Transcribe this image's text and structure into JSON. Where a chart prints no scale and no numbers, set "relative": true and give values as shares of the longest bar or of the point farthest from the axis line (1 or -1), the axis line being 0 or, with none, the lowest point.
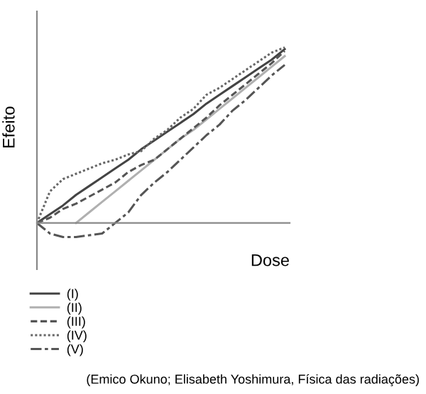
{
  "chart_data": {
    "type": "line",
    "relative": true,
    "xlabel": "Dose",
    "ylabel": "Efeito",
    "categories": [
      null,
      null,
      null,
      null,
      null,
      null,
      null,
      null,
      null,
      null,
      null,
      null,
      null,
      null,
      null,
      null,
      null,
      null,
      null,
      null
    ],
    "series": [
      {
        "name": "(I)",
        "color": "#444444",
        "line_style": "solid",
        "values": [
          0,
          0.05,
          0.1,
          0.16,
          0.21,
          0.26,
          0.31,
          0.36,
          0.42,
          0.47,
          0.52,
          0.57,
          0.62,
          0.68,
          0.73,
          0.78,
          0.83,
          0.88,
          0.93,
          0.99
        ]
      },
      {
        "name": "(II)",
        "color": "#b0b0b0",
        "line_style": "solid",
        "values": [
          null,
          null,
          null,
          0,
          0.06,
          0.12,
          0.18,
          0.24,
          0.3,
          0.36,
          0.42,
          0.48,
          0.53,
          0.59,
          0.65,
          0.71,
          0.77,
          0.83,
          0.89,
          0.95
        ]
      },
      {
        "name": "(III)",
        "color": "#555555",
        "line_style": "dashed",
        "values": [
          0,
          0.03,
          0.08,
          0.11,
          0.15,
          0.19,
          0.23,
          0.29,
          0.33,
          0.36,
          0.42,
          0.48,
          0.54,
          0.6,
          0.67,
          0.73,
          0.79,
          0.85,
          0.91,
          0.98
        ]
      },
      {
        "name": "(IV)",
        "color": "#666666",
        "line_style": "dotted",
        "values": [
          0,
          0.18,
          0.25,
          0.28,
          0.31,
          0.34,
          0.36,
          0.39,
          0.41,
          0.48,
          0.53,
          0.6,
          0.65,
          0.73,
          0.77,
          0.82,
          0.87,
          0.92,
          0.97,
          1.0
        ]
      },
      {
        "name": "(V)",
        "color": "#555555",
        "line_style": "dashdot",
        "values": [
          0,
          -0.06,
          -0.08,
          -0.08,
          -0.07,
          -0.06,
          0,
          0.06,
          0.16,
          0.23,
          0.29,
          0.36,
          0.43,
          0.5,
          0.56,
          0.64,
          0.7,
          0.77,
          0.84,
          0.9
        ]
      }
    ],
    "legend": "bottom left",
    "grid": false,
    "marker": "none",
    "annotations": [
      "(Emico Okuno; Elisabeth Yoshimura, Física das radiações)"
    ]
  }
}
